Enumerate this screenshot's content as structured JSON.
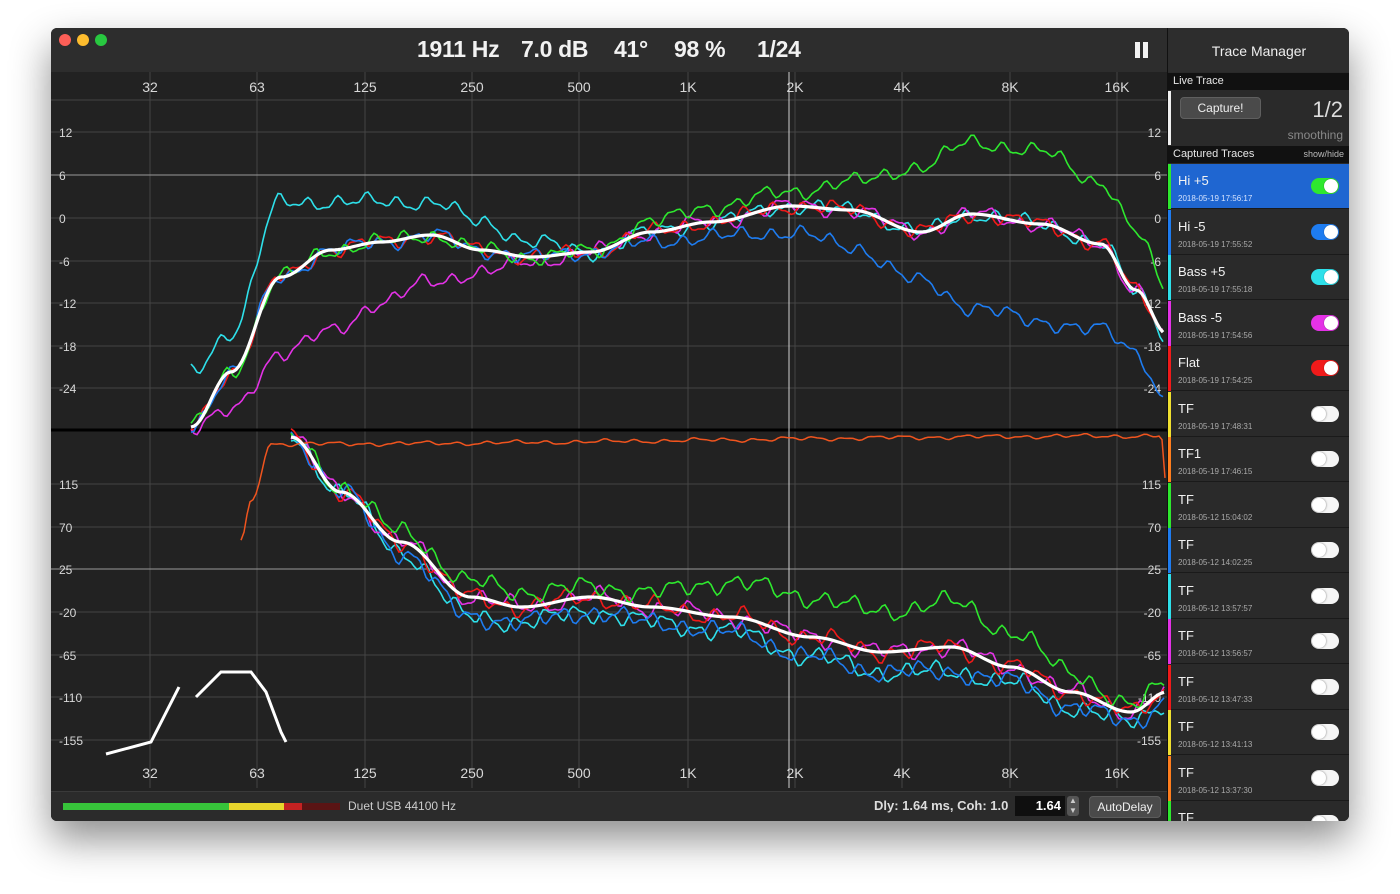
{
  "readouts": {
    "frequency": "1911 Hz",
    "level": "7.0 dB",
    "phase": "41°",
    "coherence": "98 %",
    "smoothing": "1/24"
  },
  "freq_ticks": [
    "32",
    "63",
    "125",
    "250",
    "500",
    "1K",
    "2K",
    "4K",
    "8K",
    "16K"
  ],
  "mag_ticks": [
    "12",
    "6",
    "0",
    "-6",
    "-12",
    "-18",
    "-24"
  ],
  "phase_ticks": [
    "115",
    "70",
    "25",
    "-20",
    "-65",
    "-110",
    "-155"
  ],
  "sidebar": {
    "title": "Trace Manager",
    "live_header": "Live Trace",
    "capture_label": "Capture!",
    "smoothing_value": "1/2",
    "smoothing_label": "smoothing",
    "captured_header": "Captured Traces",
    "show_hide": "show/hide",
    "traces": [
      {
        "name": "Hi +5",
        "date": "2018-05-19 17:56:17",
        "color": "#2ee82e",
        "on": true,
        "selected": true
      },
      {
        "name": "Hi -5",
        "date": "2018-05-19 17:55:52",
        "color": "#1e7cf0",
        "on": true,
        "selected": false
      },
      {
        "name": "Bass +5",
        "date": "2018-05-19 17:55:18",
        "color": "#2ee0ea",
        "on": true,
        "selected": false
      },
      {
        "name": "Bass -5",
        "date": "2018-05-19 17:54:56",
        "color": "#e432e6",
        "on": true,
        "selected": false
      },
      {
        "name": "Flat",
        "date": "2018-05-19 17:54:25",
        "color": "#f01a1a",
        "on": true,
        "selected": false
      },
      {
        "name": "TF",
        "date": "2018-05-19 17:48:31",
        "color": "#f0e030",
        "on": false,
        "selected": false
      },
      {
        "name": "TF1",
        "date": "2018-05-19 17:46:15",
        "color": "#ff7e1e",
        "on": false,
        "selected": false
      },
      {
        "name": "TF",
        "date": "2018-05-12 15:04:02",
        "color": "#2ee82e",
        "on": false,
        "selected": false
      },
      {
        "name": "TF",
        "date": "2018-05-12 14:02:25",
        "color": "#1e7cf0",
        "on": false,
        "selected": false
      },
      {
        "name": "TF",
        "date": "2018-05-12 13:57:57",
        "color": "#2ee0ea",
        "on": false,
        "selected": false
      },
      {
        "name": "TF",
        "date": "2018-05-12 13:56:57",
        "color": "#e432e6",
        "on": false,
        "selected": false
      },
      {
        "name": "TF",
        "date": "2018-05-12 13:47:33",
        "color": "#f01a1a",
        "on": false,
        "selected": false
      },
      {
        "name": "TF",
        "date": "2018-05-12 13:41:13",
        "color": "#f0e030",
        "on": false,
        "selected": false
      },
      {
        "name": "TF",
        "date": "2018-05-12 13:37:30",
        "color": "#ff7e1e",
        "on": false,
        "selected": false
      },
      {
        "name": "TF",
        "date": "",
        "color": "#2ee82e",
        "on": false,
        "selected": false
      }
    ]
  },
  "status": {
    "device": "Duet USB 44100 Hz",
    "delay_text": "Dly: 1.64 ms, Coh: 1.0",
    "delay_value": "1.64",
    "autodelay_label": "AutoDelay",
    "meter_level": 0.82
  },
  "colors": {
    "live": "#ffffff",
    "coherence": "#f0541e",
    "selected_row": "#1f66d1"
  }
}
